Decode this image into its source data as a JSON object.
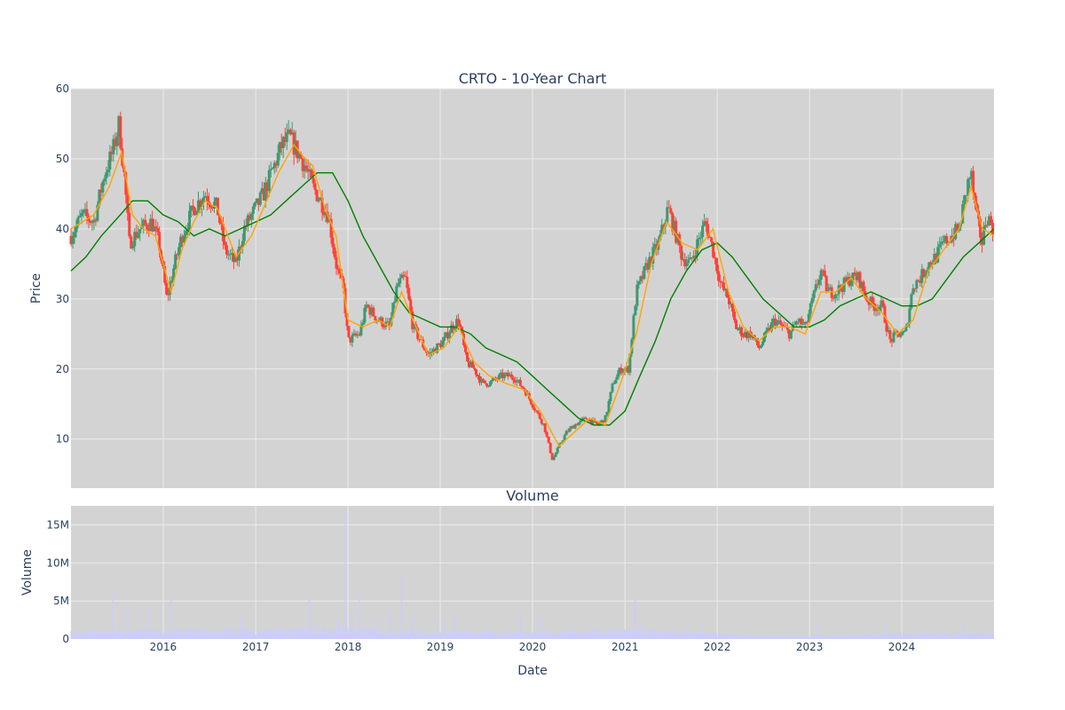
{
  "chart_data": [
    {
      "type": "candlestick",
      "title": "CRTO - 10-Year Chart",
      "ylabel": "Price",
      "ylim": [
        3,
        60
      ],
      "y_ticks": [
        "10",
        "20",
        "30",
        "40",
        "50",
        "60"
      ],
      "x_range": [
        "2015-01-01",
        "2024-12-31"
      ],
      "x_ticks": [
        "2016",
        "2017",
        "2018",
        "2019",
        "2020",
        "2021",
        "2022",
        "2023",
        "2024"
      ],
      "grid": true,
      "colors": {
        "up": "#3d9970",
        "down": "#ff4136",
        "ma_short": "#ffa500",
        "ma_long": "#008000",
        "plot_bg": "#d3d3d3",
        "grid": "#ebebeb"
      },
      "price_path": [
        [
          "2015-01-01",
          39
        ],
        [
          "2015-02-15",
          42
        ],
        [
          "2015-04-01",
          41
        ],
        [
          "2015-05-15",
          48
        ],
        [
          "2015-06-15",
          51
        ],
        [
          "2015-07-10",
          55
        ],
        [
          "2015-08-01",
          47
        ],
        [
          "2015-08-20",
          38
        ],
        [
          "2015-10-01",
          40
        ],
        [
          "2015-11-15",
          41
        ],
        [
          "2015-12-15",
          38
        ],
        [
          "2016-01-15",
          30
        ],
        [
          "2016-02-15",
          35
        ],
        [
          "2016-03-15",
          39
        ],
        [
          "2016-05-01",
          43
        ],
        [
          "2016-06-15",
          45
        ],
        [
          "2016-08-01",
          43
        ],
        [
          "2016-09-01",
          37
        ],
        [
          "2016-10-15",
          35
        ],
        [
          "2016-11-15",
          40
        ],
        [
          "2017-01-01",
          43
        ],
        [
          "2017-02-01",
          45
        ],
        [
          "2017-03-15",
          49
        ],
        [
          "2017-04-15",
          52
        ],
        [
          "2017-05-15",
          53
        ],
        [
          "2017-06-15",
          51
        ],
        [
          "2017-07-15",
          49
        ],
        [
          "2017-08-15",
          46
        ],
        [
          "2017-09-15",
          44
        ],
        [
          "2017-10-15",
          42
        ],
        [
          "2017-11-15",
          35
        ],
        [
          "2017-12-15",
          31
        ],
        [
          "2018-01-01",
          24
        ],
        [
          "2018-02-15",
          25
        ],
        [
          "2018-03-15",
          29
        ],
        [
          "2018-05-01",
          27
        ],
        [
          "2018-06-15",
          26
        ],
        [
          "2018-07-15",
          32
        ],
        [
          "2018-08-15",
          33
        ],
        [
          "2018-09-15",
          26
        ],
        [
          "2018-10-15",
          24
        ],
        [
          "2018-11-15",
          22
        ],
        [
          "2018-12-15",
          23
        ],
        [
          "2019-01-15",
          24
        ],
        [
          "2019-02-15",
          26
        ],
        [
          "2019-03-15",
          27
        ],
        [
          "2019-04-15",
          21
        ],
        [
          "2019-05-15",
          20
        ],
        [
          "2019-06-15",
          18
        ],
        [
          "2019-07-15",
          18
        ],
        [
          "2019-09-01",
          19
        ],
        [
          "2019-10-15",
          19
        ],
        [
          "2019-12-01",
          17
        ],
        [
          "2020-01-15",
          14
        ],
        [
          "2020-02-15",
          12
        ],
        [
          "2020-03-20",
          7
        ],
        [
          "2020-04-15",
          9
        ],
        [
          "2020-05-15",
          11
        ],
        [
          "2020-06-15",
          12
        ],
        [
          "2020-08-01",
          13
        ],
        [
          "2020-09-15",
          12
        ],
        [
          "2020-10-15",
          13
        ],
        [
          "2020-11-15",
          18
        ],
        [
          "2020-12-15",
          20
        ],
        [
          "2021-01-15",
          20
        ],
        [
          "2021-02-15",
          31
        ],
        [
          "2021-04-01",
          35
        ],
        [
          "2021-05-15",
          38
        ],
        [
          "2021-06-20",
          43
        ],
        [
          "2021-07-15",
          40
        ],
        [
          "2021-08-15",
          36
        ],
        [
          "2021-09-15",
          35
        ],
        [
          "2021-10-15",
          38
        ],
        [
          "2021-11-15",
          41
        ],
        [
          "2021-12-15",
          37
        ],
        [
          "2022-01-15",
          32
        ],
        [
          "2022-02-15",
          30
        ],
        [
          "2022-03-15",
          26
        ],
        [
          "2022-04-15",
          25
        ],
        [
          "2022-05-15",
          25
        ],
        [
          "2022-06-15",
          23
        ],
        [
          "2022-07-15",
          25
        ],
        [
          "2022-08-15",
          27
        ],
        [
          "2022-09-15",
          26
        ],
        [
          "2022-10-15",
          25
        ],
        [
          "2022-11-15",
          27
        ],
        [
          "2022-12-15",
          26
        ],
        [
          "2023-01-15",
          30
        ],
        [
          "2023-02-15",
          34
        ],
        [
          "2023-03-15",
          31
        ],
        [
          "2023-04-15",
          31
        ],
        [
          "2023-05-15",
          32
        ],
        [
          "2023-06-15",
          33
        ],
        [
          "2023-07-15",
          33
        ],
        [
          "2023-08-15",
          30
        ],
        [
          "2023-09-15",
          29
        ],
        [
          "2023-10-15",
          29
        ],
        [
          "2023-11-15",
          24
        ],
        [
          "2023-12-15",
          25
        ],
        [
          "2024-01-15",
          25
        ],
        [
          "2024-02-15",
          32
        ],
        [
          "2024-03-15",
          33
        ],
        [
          "2024-04-15",
          35
        ],
        [
          "2024-05-15",
          36
        ],
        [
          "2024-06-15",
          38
        ],
        [
          "2024-07-15",
          39
        ],
        [
          "2024-08-15",
          40
        ],
        [
          "2024-09-15",
          46
        ],
        [
          "2024-10-01",
          48
        ],
        [
          "2024-10-20",
          42
        ],
        [
          "2024-11-15",
          38
        ],
        [
          "2024-12-01",
          42
        ],
        [
          "2024-12-31",
          40
        ]
      ],
      "ma_short": [
        [
          "2015-01-01",
          40
        ],
        [
          "2015-04-01",
          42
        ],
        [
          "2015-06-01",
          46
        ],
        [
          "2015-07-20",
          51
        ],
        [
          "2015-09-01",
          42
        ],
        [
          "2015-10-15",
          40
        ],
        [
          "2015-12-01",
          39
        ],
        [
          "2016-02-01",
          31
        ],
        [
          "2016-03-15",
          37
        ],
        [
          "2016-05-01",
          41
        ],
        [
          "2016-06-15",
          44
        ],
        [
          "2016-08-01",
          43
        ],
        [
          "2016-10-15",
          36
        ],
        [
          "2016-12-15",
          39
        ],
        [
          "2017-02-01",
          43
        ],
        [
          "2017-04-01",
          48
        ],
        [
          "2017-06-01",
          52
        ],
        [
          "2017-07-15",
          50
        ],
        [
          "2017-08-15",
          49
        ],
        [
          "2017-10-01",
          43
        ],
        [
          "2017-11-15",
          39
        ],
        [
          "2018-01-01",
          27
        ],
        [
          "2018-03-01",
          26
        ],
        [
          "2018-05-01",
          27
        ],
        [
          "2018-06-15",
          26
        ],
        [
          "2018-08-01",
          31
        ],
        [
          "2018-09-15",
          27
        ],
        [
          "2018-11-15",
          22
        ],
        [
          "2019-01-15",
          23
        ],
        [
          "2019-03-15",
          26
        ],
        [
          "2019-05-15",
          21
        ],
        [
          "2019-07-15",
          19
        ],
        [
          "2019-09-15",
          18
        ],
        [
          "2019-12-01",
          17
        ],
        [
          "2020-02-01",
          14
        ],
        [
          "2020-04-15",
          9
        ],
        [
          "2020-06-15",
          11
        ],
        [
          "2020-08-15",
          13
        ],
        [
          "2020-10-15",
          12
        ],
        [
          "2020-12-15",
          18
        ],
        [
          "2021-02-15",
          25
        ],
        [
          "2021-04-15",
          35
        ],
        [
          "2021-06-15",
          41
        ],
        [
          "2021-08-15",
          38
        ],
        [
          "2021-10-15",
          37
        ],
        [
          "2021-12-15",
          40
        ],
        [
          "2022-02-15",
          31
        ],
        [
          "2022-04-15",
          26
        ],
        [
          "2022-06-15",
          24
        ],
        [
          "2022-08-15",
          26
        ],
        [
          "2022-10-15",
          26
        ],
        [
          "2022-12-15",
          25
        ],
        [
          "2023-02-15",
          31
        ],
        [
          "2023-04-15",
          31
        ],
        [
          "2023-06-15",
          33
        ],
        [
          "2023-08-15",
          30
        ],
        [
          "2023-10-15",
          28
        ],
        [
          "2023-12-15",
          25
        ],
        [
          "2024-02-15",
          27
        ],
        [
          "2024-04-15",
          34
        ],
        [
          "2024-06-15",
          37
        ],
        [
          "2024-08-15",
          40
        ],
        [
          "2024-10-01",
          46
        ],
        [
          "2024-11-15",
          40
        ],
        [
          "2024-12-31",
          39
        ]
      ],
      "ma_long": [
        [
          "2015-01-01",
          34
        ],
        [
          "2015-03-01",
          36
        ],
        [
          "2015-05-01",
          39
        ],
        [
          "2015-07-15",
          42
        ],
        [
          "2015-09-01",
          44
        ],
        [
          "2015-11-01",
          44
        ],
        [
          "2016-01-01",
          42
        ],
        [
          "2016-03-01",
          41
        ],
        [
          "2016-05-01",
          39
        ],
        [
          "2016-07-01",
          40
        ],
        [
          "2016-09-01",
          39
        ],
        [
          "2016-11-01",
          40
        ],
        [
          "2017-01-01",
          41
        ],
        [
          "2017-03-01",
          42
        ],
        [
          "2017-05-01",
          44
        ],
        [
          "2017-07-01",
          46
        ],
        [
          "2017-09-01",
          48
        ],
        [
          "2017-11-01",
          48
        ],
        [
          "2018-01-01",
          44
        ],
        [
          "2018-03-01",
          39
        ],
        [
          "2018-05-01",
          35
        ],
        [
          "2018-07-01",
          31
        ],
        [
          "2018-09-01",
          28
        ],
        [
          "2018-11-01",
          27
        ],
        [
          "2019-01-01",
          26
        ],
        [
          "2019-03-01",
          26
        ],
        [
          "2019-05-01",
          25
        ],
        [
          "2019-07-01",
          23
        ],
        [
          "2019-09-01",
          22
        ],
        [
          "2019-11-01",
          21
        ],
        [
          "2020-01-01",
          19
        ],
        [
          "2020-03-01",
          17
        ],
        [
          "2020-05-01",
          15
        ],
        [
          "2020-07-01",
          13
        ],
        [
          "2020-09-01",
          12
        ],
        [
          "2020-11-01",
          12
        ],
        [
          "2021-01-01",
          14
        ],
        [
          "2021-03-01",
          19
        ],
        [
          "2021-05-01",
          24
        ],
        [
          "2021-07-01",
          30
        ],
        [
          "2021-09-01",
          34
        ],
        [
          "2021-11-01",
          37
        ],
        [
          "2022-01-01",
          38
        ],
        [
          "2022-03-01",
          36
        ],
        [
          "2022-05-01",
          33
        ],
        [
          "2022-07-01",
          30
        ],
        [
          "2022-09-01",
          28
        ],
        [
          "2022-11-01",
          26
        ],
        [
          "2023-01-01",
          26
        ],
        [
          "2023-03-01",
          27
        ],
        [
          "2023-05-01",
          29
        ],
        [
          "2023-07-01",
          30
        ],
        [
          "2023-09-01",
          31
        ],
        [
          "2023-11-01",
          30
        ],
        [
          "2024-01-01",
          29
        ],
        [
          "2024-03-01",
          29
        ],
        [
          "2024-05-01",
          30
        ],
        [
          "2024-07-01",
          33
        ],
        [
          "2024-09-01",
          36
        ],
        [
          "2024-11-01",
          38
        ],
        [
          "2024-12-31",
          40
        ]
      ]
    },
    {
      "type": "bar",
      "title": "Volume",
      "xlabel": "Date",
      "ylabel": "Volume",
      "ylim": [
        0,
        17500000
      ],
      "y_ticks": [
        "0",
        "5M",
        "10M",
        "15M"
      ],
      "x_ticks": [
        "2016",
        "2017",
        "2018",
        "2019",
        "2020",
        "2021",
        "2022",
        "2023",
        "2024"
      ],
      "grid": true,
      "colors": {
        "bar": "#ccccff",
        "plot_bg": "#d3d3d3",
        "grid": "#ebebeb"
      },
      "baseline": [
        [
          "2015-01-01",
          700000
        ],
        [
          "2016-01-01",
          800000
        ],
        [
          "2017-01-01",
          900000
        ],
        [
          "2018-01-01",
          1000000
        ],
        [
          "2019-01-01",
          700000
        ],
        [
          "2020-01-01",
          700000
        ],
        [
          "2021-01-01",
          900000
        ],
        [
          "2022-01-01",
          500000
        ],
        [
          "2023-01-01",
          300000
        ],
        [
          "2024-01-01",
          500000
        ],
        [
          "2024-12-31",
          600000
        ]
      ],
      "spikes": [
        [
          "2015-06-15",
          5900000
        ],
        [
          "2015-08-15",
          4300000
        ],
        [
          "2015-11-01",
          4700000
        ],
        [
          "2016-02-01",
          5500000
        ],
        [
          "2016-11-01",
          2900000
        ],
        [
          "2017-08-01",
          5300000
        ],
        [
          "2017-11-20",
          2800000
        ],
        [
          "2017-12-20",
          17000000
        ],
        [
          "2018-01-15",
          3500000
        ],
        [
          "2018-02-15",
          5900000
        ],
        [
          "2018-05-01",
          3200000
        ],
        [
          "2018-06-15",
          3800000
        ],
        [
          "2018-08-01",
          8700000
        ],
        [
          "2018-09-15",
          3600000
        ],
        [
          "2019-01-15",
          2800000
        ],
        [
          "2019-03-01",
          3600000
        ],
        [
          "2019-11-15",
          3200000
        ],
        [
          "2020-02-01",
          2800000
        ],
        [
          "2021-02-10",
          5300000
        ],
        [
          "2021-03-15",
          2500000
        ],
        [
          "2021-11-01",
          2200000
        ],
        [
          "2023-02-01",
          1900000
        ],
        [
          "2023-11-01",
          2000000
        ],
        [
          "2024-09-01",
          2100000
        ]
      ]
    }
  ]
}
